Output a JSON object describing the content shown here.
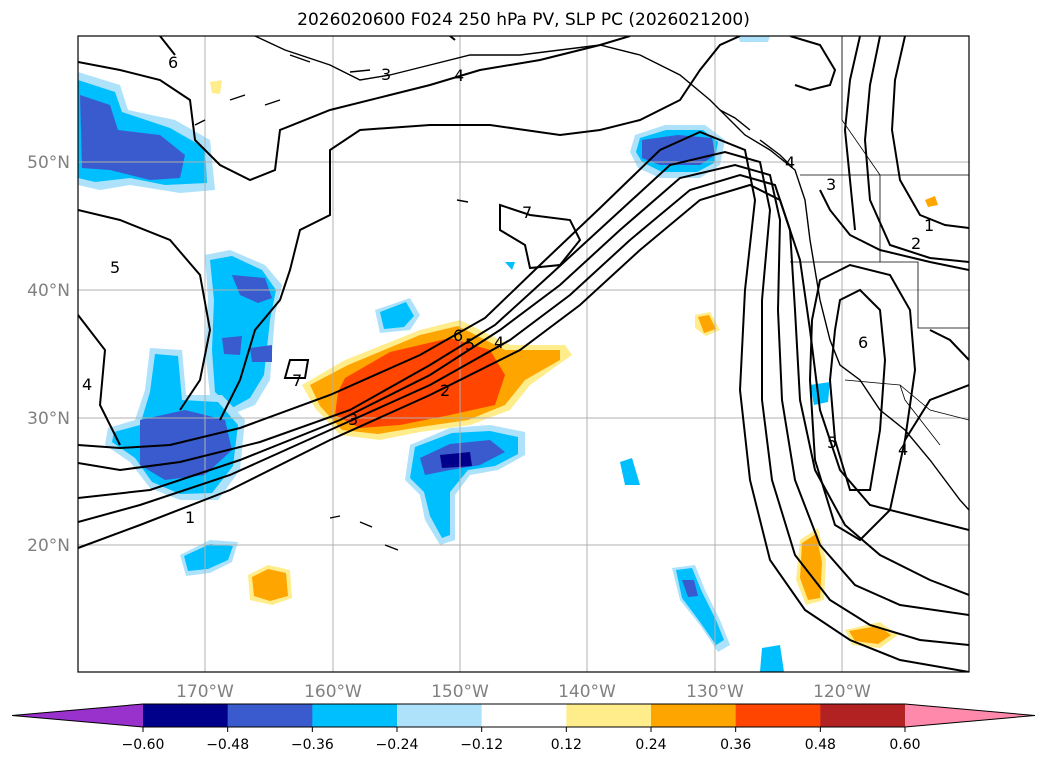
{
  "title": "2026020600 F024 250 hPa PV, SLP PC (2026021200)",
  "lat_labels": [
    "50°N",
    "40°N",
    "30°N",
    "20°N"
  ],
  "lon_labels": [
    "170°W",
    "160°W",
    "150°W",
    "140°W",
    "130°W",
    "120°W"
  ],
  "contour_labels": [
    "6",
    "3",
    "4",
    "4",
    "5",
    "7",
    "6",
    "5",
    "4",
    "7",
    "2",
    "3",
    "1",
    "3",
    "1",
    "2",
    "6",
    "5",
    "4",
    "4"
  ],
  "colorbar": {
    "ticks": [
      "−0.60",
      "−0.48",
      "−0.36",
      "−0.24",
      "−0.12",
      "0.12",
      "0.24",
      "0.36",
      "0.48",
      "0.60"
    ],
    "colors": [
      "#9932cc",
      "#00008b",
      "#3a5bcd",
      "#00bfff",
      "#ade2fa",
      "#ffffff",
      "#ffec8b",
      "#ffa500",
      "#ff4500",
      "#b22222",
      "#ff89aa"
    ]
  },
  "colors": {
    "dark_blue": "#00008b",
    "royal_blue": "#3a5bcd",
    "deep_sky_blue": "#00bfff",
    "light_blue": "#ade2fa",
    "light_yellow": "#ffec8b",
    "orange": "#ffa500",
    "orange_red": "#ff4500"
  }
}
